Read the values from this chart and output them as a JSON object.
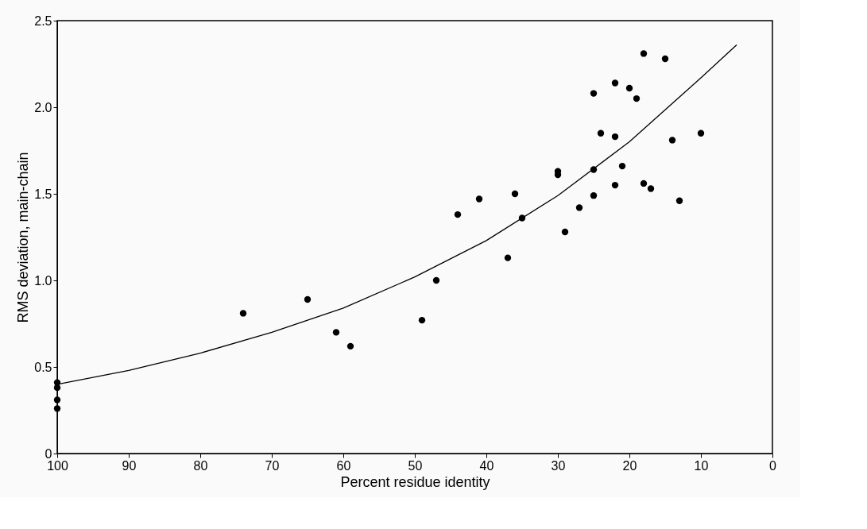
{
  "chart_data": {
    "type": "scatter",
    "xlabel": "Percent residue identity",
    "ylabel": "RMS deviation, main-chain",
    "xlim": [
      100,
      0
    ],
    "ylim": [
      0,
      2.5
    ],
    "xticks": [
      100,
      90,
      80,
      70,
      60,
      50,
      40,
      30,
      20,
      10,
      0
    ],
    "yticks": [
      0,
      0.5,
      {
        "value": 1,
        "label": "1.0"
      },
      1.5,
      {
        "value": 2,
        "label": "2.0"
      },
      2.5
    ],
    "grid": false,
    "series": [
      {
        "color": "#000000",
        "marker": "circle",
        "x": [
          100,
          100,
          100,
          100,
          74,
          65,
          61,
          59,
          49,
          47,
          44,
          41,
          37,
          36,
          35,
          30,
          30,
          29,
          27,
          25,
          25,
          25,
          24,
          22,
          22,
          22,
          21,
          20,
          19,
          18,
          18,
          17,
          15,
          14,
          13,
          10
        ],
        "values": [
          0.41,
          0.38,
          0.31,
          0.26,
          0.81,
          0.89,
          0.7,
          0.62,
          0.77,
          1.0,
          1.38,
          1.47,
          1.13,
          1.5,
          1.36,
          1.63,
          1.61,
          1.28,
          1.42,
          2.08,
          1.64,
          1.49,
          1.85,
          2.14,
          1.83,
          1.55,
          1.66,
          2.11,
          2.05,
          2.31,
          1.56,
          1.53,
          2.28,
          1.81,
          1.46,
          1.85
        ]
      },
      {
        "type": "line",
        "color": "#000000",
        "marker": "none",
        "line_style": "solid",
        "x": [
          100,
          90,
          80,
          70,
          60,
          50,
          40,
          30,
          20,
          10,
          5
        ],
        "values": [
          0.4,
          0.48,
          0.58,
          0.7,
          0.84,
          1.02,
          1.23,
          1.49,
          1.8,
          2.17,
          2.36
        ]
      }
    ]
  }
}
